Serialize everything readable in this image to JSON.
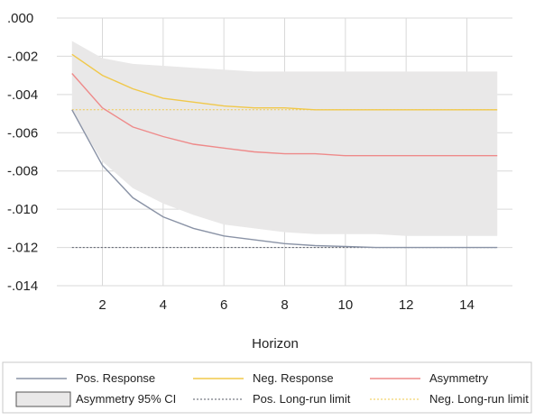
{
  "chart_data": {
    "type": "line",
    "xlabel": "Horizon",
    "ylabel": "",
    "title": "",
    "xlim": [
      0.5,
      15.5
    ],
    "ylim": [
      -0.014,
      0.0
    ],
    "x_ticks": [
      2,
      4,
      6,
      8,
      10,
      12,
      14
    ],
    "x_tick_labels": [
      "2",
      "4",
      "6",
      "8",
      "10",
      "12",
      "14"
    ],
    "y_ticks": [
      0.0,
      -0.002,
      -0.004,
      -0.006,
      -0.008,
      -0.01,
      -0.012,
      -0.014
    ],
    "y_tick_labels": [
      ".000",
      "-.002",
      "-.004",
      "-.006",
      "-.008",
      "-.010",
      "-.012",
      "-.014"
    ],
    "grid": "vertical",
    "x": [
      1,
      2,
      3,
      4,
      5,
      6,
      7,
      8,
      9,
      10,
      11,
      12,
      13,
      14,
      15
    ],
    "series": [
      {
        "name": "Pos. Response",
        "color": "#8a93a6",
        "style": "solid",
        "values": [
          -0.0048,
          -0.0077,
          -0.0094,
          -0.0104,
          -0.011,
          -0.0114,
          -0.0116,
          -0.0118,
          -0.0119,
          -0.01195,
          -0.012,
          -0.012,
          -0.012,
          -0.012,
          -0.012
        ]
      },
      {
        "name": "Neg. Response",
        "color": "#f0c84a",
        "style": "solid",
        "values": [
          -0.0019,
          -0.003,
          -0.0037,
          -0.0042,
          -0.0044,
          -0.0046,
          -0.0047,
          -0.0047,
          -0.0048,
          -0.0048,
          -0.0048,
          -0.0048,
          -0.0048,
          -0.0048,
          -0.0048
        ]
      },
      {
        "name": "Asymmetry",
        "color": "#ee8a8a",
        "style": "solid",
        "values": [
          -0.0029,
          -0.0047,
          -0.0057,
          -0.0062,
          -0.0066,
          -0.0068,
          -0.007,
          -0.0071,
          -0.0071,
          -0.0072,
          -0.0072,
          -0.0072,
          -0.0072,
          -0.0072,
          -0.0072
        ]
      },
      {
        "name": "Pos. Long-run limit",
        "color": "#555a66",
        "style": "dotted",
        "values": [
          -0.012,
          -0.012,
          -0.012,
          -0.012,
          -0.012,
          -0.012,
          -0.012,
          -0.012,
          -0.012,
          -0.012,
          -0.012,
          -0.012,
          -0.012,
          -0.012,
          -0.012
        ]
      },
      {
        "name": "Neg. Long-run limit",
        "color": "#f0c84a",
        "style": "dotted",
        "values": [
          -0.0048,
          -0.0048,
          -0.0048,
          -0.0048,
          -0.0048,
          -0.0048,
          -0.0048,
          -0.0048,
          -0.0048,
          -0.0048,
          -0.0048,
          -0.0048,
          -0.0048,
          -0.0048,
          -0.0048
        ]
      }
    ],
    "band": {
      "name": "Asymmetry 95% CI",
      "color": "#e9e8e8",
      "upper": [
        -0.0012,
        -0.0021,
        -0.0024,
        -0.0025,
        -0.0026,
        -0.0027,
        -0.0028,
        -0.0028,
        -0.0028,
        -0.0028,
        -0.0028,
        -0.0028,
        -0.0028,
        -0.0028,
        -0.0028
      ],
      "lower": [
        -0.0049,
        -0.0075,
        -0.0089,
        -0.0097,
        -0.0103,
        -0.0108,
        -0.011,
        -0.0112,
        -0.0113,
        -0.0113,
        -0.0113,
        -0.0114,
        -0.0114,
        -0.0114,
        -0.0114
      ]
    },
    "legend": {
      "placement": "bottom",
      "items": [
        {
          "label": "Pos. Response",
          "kind": "line",
          "color": "#8a93a6",
          "style": "solid"
        },
        {
          "label": "Neg. Response",
          "kind": "line",
          "color": "#f0c84a",
          "style": "solid"
        },
        {
          "label": "Asymmetry",
          "kind": "line",
          "color": "#ee8a8a",
          "style": "solid"
        },
        {
          "label": "Asymmetry 95% CI",
          "kind": "box",
          "color": "#e9e8e8",
          "style": "solid"
        },
        {
          "label": "Pos. Long-run limit",
          "kind": "line",
          "color": "#555a66",
          "style": "dotted"
        },
        {
          "label": "Neg. Long-run limit",
          "kind": "line",
          "color": "#f0c84a",
          "style": "dotted"
        }
      ]
    }
  }
}
